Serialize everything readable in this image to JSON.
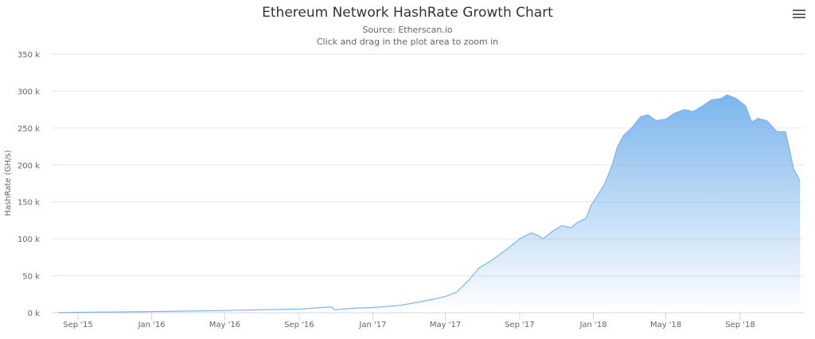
{
  "chart_data": {
    "type": "area",
    "title": "Ethereum Network HashRate Growth Chart",
    "subtitle": "Source: Etherscan.io",
    "hint": "Click and drag in the plot area to zoom in",
    "xlabel": "",
    "ylabel": "HashRate (GH/s)",
    "ylim": [
      0,
      350000
    ],
    "y_ticks": [
      "0 k",
      "50 k",
      "100 k",
      "150 k",
      "200 k",
      "250 k",
      "300 k",
      "350 k"
    ],
    "x_ticks": [
      {
        "date": "2015-09-01",
        "label": "Sep '15"
      },
      {
        "date": "2016-01-01",
        "label": "Jan '16"
      },
      {
        "date": "2016-05-01",
        "label": "May '16"
      },
      {
        "date": "2016-09-01",
        "label": "Sep '16"
      },
      {
        "date": "2017-01-01",
        "label": "Jan '17"
      },
      {
        "date": "2017-05-01",
        "label": "May '17"
      },
      {
        "date": "2017-09-01",
        "label": "Sep '17"
      },
      {
        "date": "2018-01-01",
        "label": "Jan '18"
      },
      {
        "date": "2018-05-01",
        "label": "May '18"
      },
      {
        "date": "2018-09-01",
        "label": "Sep '18"
      }
    ],
    "grid": true,
    "legend": "none",
    "color": "#7cb5ec",
    "points": [
      [
        "2015-07-30",
        100
      ],
      [
        "2015-09-01",
        500
      ],
      [
        "2016-01-01",
        1500
      ],
      [
        "2016-05-01",
        3000
      ],
      [
        "2016-09-01",
        5000
      ],
      [
        "2016-10-25",
        8000
      ],
      [
        "2016-10-29",
        4000
      ],
      [
        "2016-12-01",
        6000
      ],
      [
        "2017-01-01",
        7000
      ],
      [
        "2017-02-15",
        10000
      ],
      [
        "2017-03-15",
        14000
      ],
      [
        "2017-04-15",
        19000
      ],
      [
        "2017-05-01",
        22000
      ],
      [
        "2017-05-20",
        28000
      ],
      [
        "2017-06-10",
        45000
      ],
      [
        "2017-06-25",
        60000
      ],
      [
        "2017-07-15",
        70000
      ],
      [
        "2017-08-01",
        80000
      ],
      [
        "2017-08-20",
        92000
      ],
      [
        "2017-09-01",
        100000
      ],
      [
        "2017-09-20",
        108000
      ],
      [
        "2017-10-01",
        105000
      ],
      [
        "2017-10-10",
        100000
      ],
      [
        "2017-10-25",
        110000
      ],
      [
        "2017-11-10",
        118000
      ],
      [
        "2017-11-25",
        115000
      ],
      [
        "2017-12-05",
        122000
      ],
      [
        "2017-12-20",
        128000
      ],
      [
        "2017-12-28",
        145000
      ],
      [
        "2018-01-05",
        155000
      ],
      [
        "2018-01-20",
        175000
      ],
      [
        "2018-02-01",
        200000
      ],
      [
        "2018-02-10",
        225000
      ],
      [
        "2018-02-20",
        240000
      ],
      [
        "2018-03-05",
        250000
      ],
      [
        "2018-03-20",
        265000
      ],
      [
        "2018-04-01",
        268000
      ],
      [
        "2018-04-15",
        260000
      ],
      [
        "2018-05-01",
        262000
      ],
      [
        "2018-05-15",
        270000
      ],
      [
        "2018-06-01",
        275000
      ],
      [
        "2018-06-15",
        272000
      ],
      [
        "2018-07-01",
        280000
      ],
      [
        "2018-07-15",
        288000
      ],
      [
        "2018-08-01",
        290000
      ],
      [
        "2018-08-10",
        295000
      ],
      [
        "2018-08-25",
        290000
      ],
      [
        "2018-09-10",
        280000
      ],
      [
        "2018-09-20",
        258000
      ],
      [
        "2018-10-01",
        263000
      ],
      [
        "2018-10-15",
        260000
      ],
      [
        "2018-11-01",
        245000
      ],
      [
        "2018-11-15",
        245000
      ],
      [
        "2018-11-22",
        220000
      ],
      [
        "2018-11-28",
        195000
      ],
      [
        "2018-12-05",
        185000
      ],
      [
        "2018-12-09",
        178000
      ]
    ]
  },
  "toolbar": {
    "menu_icon": "hamburger-menu-icon"
  }
}
